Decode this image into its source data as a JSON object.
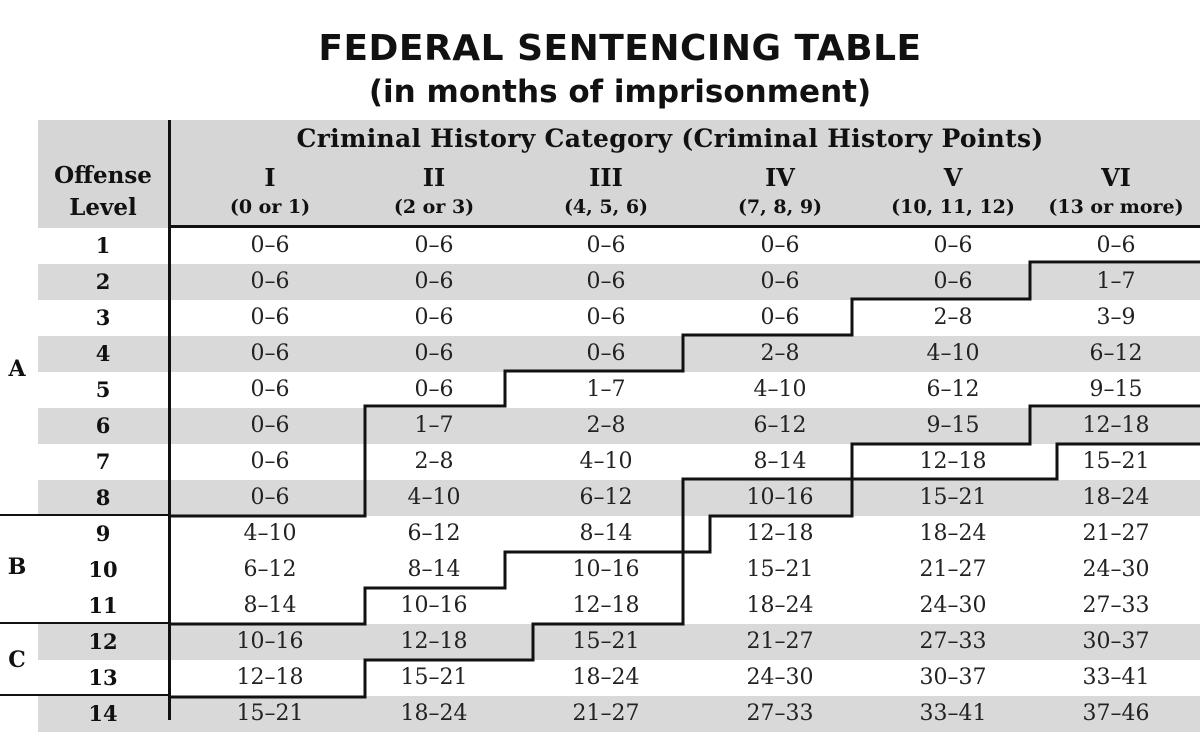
{
  "title": "FEDERAL SENTENCING TABLE",
  "subtitle": "(in months of imprisonment)",
  "header": {
    "category_title": "Criminal History Category  (Criminal History Points)",
    "offense_label_1": "Offense",
    "offense_label_2": "Level",
    "columns": [
      {
        "roman": "I",
        "points": "(0 or 1)"
      },
      {
        "roman": "II",
        "points": "(2 or 3)"
      },
      {
        "roman": "III",
        "points": "(4, 5, 6)"
      },
      {
        "roman": "IV",
        "points": "(7, 8, 9)"
      },
      {
        "roman": "V",
        "points": "(10, 11, 12)"
      },
      {
        "roman": "VI",
        "points": "(13 or more)"
      }
    ]
  },
  "zones": [
    "A",
    "B",
    "C"
  ],
  "rows": [
    {
      "level": "1",
      "cells": [
        "0–6",
        "0–6",
        "0–6",
        "0–6",
        "0–6",
        "0–6"
      ]
    },
    {
      "level": "2",
      "cells": [
        "0–6",
        "0–6",
        "0–6",
        "0–6",
        "0–6",
        "1–7"
      ]
    },
    {
      "level": "3",
      "cells": [
        "0–6",
        "0–6",
        "0–6",
        "0–6",
        "2–8",
        "3–9"
      ]
    },
    {
      "level": "4",
      "cells": [
        "0–6",
        "0–6",
        "0–6",
        "2–8",
        "4–10",
        "6–12"
      ]
    },
    {
      "level": "5",
      "cells": [
        "0–6",
        "0–6",
        "1–7",
        "4–10",
        "6–12",
        "9–15"
      ]
    },
    {
      "level": "6",
      "cells": [
        "0–6",
        "1–7",
        "2–8",
        "6–12",
        "9–15",
        "12–18"
      ]
    },
    {
      "level": "7",
      "cells": [
        "0–6",
        "2–8",
        "4–10",
        "8–14",
        "12–18",
        "15–21"
      ]
    },
    {
      "level": "8",
      "cells": [
        "0–6",
        "4–10",
        "6–12",
        "10–16",
        "15–21",
        "18–24"
      ]
    },
    {
      "level": "9",
      "cells": [
        "4–10",
        "6–12",
        "8–14",
        "12–18",
        "18–24",
        "21–27"
      ]
    },
    {
      "level": "10",
      "cells": [
        "6–12",
        "8–14",
        "10–16",
        "15–21",
        "21–27",
        "24–30"
      ]
    },
    {
      "level": "11",
      "cells": [
        "8–14",
        "10–16",
        "12–18",
        "18–24",
        "24–30",
        "27–33"
      ]
    },
    {
      "level": "12",
      "cells": [
        "10–16",
        "12–18",
        "15–21",
        "21–27",
        "27–33",
        "30–37"
      ]
    },
    {
      "level": "13",
      "cells": [
        "12–18",
        "15–21",
        "18–24",
        "24–30",
        "30–37",
        "33–41"
      ]
    },
    {
      "level": "14",
      "cells": [
        "15–21",
        "18–24",
        "21–27",
        "27–33",
        "33–41",
        "37–46"
      ]
    }
  ]
}
